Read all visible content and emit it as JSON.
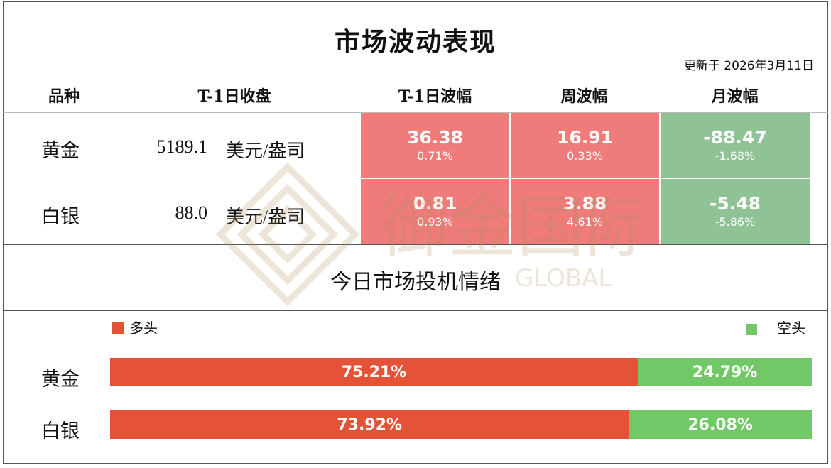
{
  "title": "市场波动表现",
  "updated": "更新于 2026年3月11日",
  "columns": [
    "品种",
    "T-1日收盘",
    "T-1日波幅",
    "周波幅",
    "月波幅"
  ],
  "rows": [
    {
      "name": "黄金",
      "close": "5189.1",
      "unit": "美元/盎司",
      "t1": {
        "value": "36.38",
        "pct": "0.71%"
      },
      "week": {
        "value": "16.91",
        "pct": "0.33%"
      },
      "month": {
        "value": "-88.47",
        "pct": "-1.68%"
      }
    },
    {
      "name": "白银",
      "close": "88.0",
      "unit": "美元/盎司",
      "t1": {
        "value": "0.81",
        "pct": "0.93%"
      },
      "week": {
        "value": "3.88",
        "pct": "4.61%"
      },
      "month": {
        "value": "-5.48",
        "pct": "-5.86%"
      }
    }
  ],
  "sentiment": {
    "title": "今日市场投机情绪",
    "long_label": "多头",
    "short_label": "空头",
    "long_color": "#e45238",
    "short_color": "#72c767",
    "items": [
      {
        "name": "黄金",
        "long": "75.21%",
        "short": "24.79%",
        "long_fraction": 0.7521
      },
      {
        "name": "白银",
        "long": "73.92%",
        "short": "26.08%",
        "long_fraction": 0.7392
      }
    ]
  },
  "watermark": {
    "cn": "御金国际",
    "en": "GLOBAL"
  }
}
